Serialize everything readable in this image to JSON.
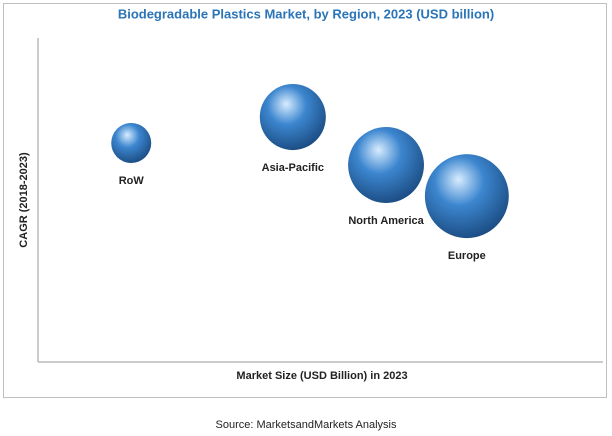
{
  "chart_data": {
    "type": "bubble",
    "title": "Biodegradable Plastics Market, by Region, 2023 (USD billion)",
    "xlabel": "Market Size (USD Billion) in 2023",
    "ylabel": "CAGR (2018-2023)",
    "labels": [
      "RoW",
      "Asia-Pacific",
      "North America",
      "Europe"
    ],
    "x": [
      16.5,
      45.1,
      61.6,
      75.9
    ],
    "values": [
      67.6,
      75.6,
      60.8,
      51.2
    ],
    "sizes": [
      4,
      10.9,
      14.4,
      17.6
    ],
    "color": "#3c86cf",
    "xlim": [
      0,
      100
    ],
    "ylim": [
      0,
      100
    ]
  },
  "source": "Source: MarketsandMarkets Analysis"
}
